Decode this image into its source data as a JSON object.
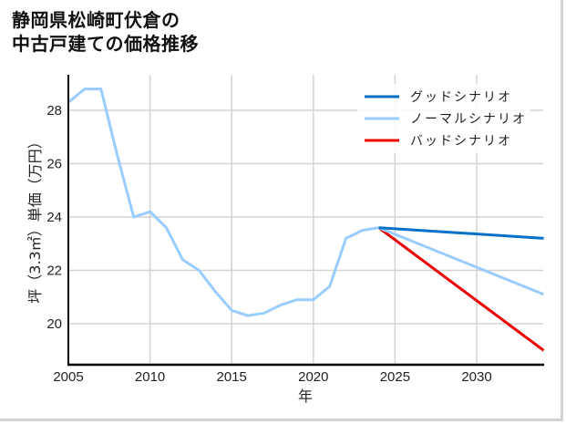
{
  "title": {
    "line1": "静岡県松崎町伏倉の",
    "line2": "中古戸建ての価格推移"
  },
  "colors": {
    "good": "#0070c8",
    "normal": "#99ccff",
    "bad": "#ee0000",
    "grid": "#d3d3d3",
    "axis": "#000000",
    "frame": "#d3d3d3"
  },
  "chart_data": {
    "type": "line",
    "title": "静岡県松崎町伏倉の中古戸建ての価格推移",
    "xlabel": "年",
    "ylabel": "坪（3.3㎡）単価（万円）",
    "xlim": [
      2005,
      2034.1
    ],
    "ylim": [
      18.5,
      29.3
    ],
    "xticks": [
      2005,
      2010,
      2015,
      2020,
      2025,
      2030
    ],
    "yticks": [
      20,
      22,
      24,
      26,
      28
    ],
    "grid": true,
    "legend_position": "upper right",
    "legend": [
      "グッドシナリオ",
      "ノーマルシナリオ",
      "バッドシナリオ"
    ],
    "series": [
      {
        "name": "ノーマルシナリオ",
        "role": "historical",
        "color": "#99ccff",
        "x": [
          2005,
          2006,
          2007,
          2008,
          2009,
          2010,
          2011,
          2012,
          2013,
          2014,
          2015,
          2016,
          2017,
          2018,
          2019,
          2020,
          2021,
          2022,
          2023,
          2024
        ],
        "y": [
          28.3,
          28.8,
          28.8,
          26.3,
          24.0,
          24.2,
          23.6,
          22.4,
          22.0,
          21.2,
          20.5,
          20.3,
          20.4,
          20.7,
          20.9,
          20.9,
          21.4,
          23.2,
          23.5,
          23.6
        ]
      },
      {
        "name": "グッドシナリオ",
        "color": "#0070c8",
        "x": [
          2024,
          2034.1
        ],
        "y": [
          23.6,
          23.2
        ]
      },
      {
        "name": "ノーマルシナリオ",
        "color": "#99ccff",
        "x": [
          2024,
          2034.1
        ],
        "y": [
          23.6,
          21.1
        ]
      },
      {
        "name": "バッドシナリオ",
        "color": "#ee0000",
        "x": [
          2024,
          2034.1
        ],
        "y": [
          23.6,
          19.0
        ]
      }
    ]
  },
  "axes": {
    "xlabel": "年",
    "ylabel": "坪（3.3㎡）単価（万円）",
    "xtick_labels": [
      "2005",
      "2010",
      "2015",
      "2020",
      "2025",
      "2030"
    ],
    "ytick_labels": [
      "20",
      "22",
      "24",
      "26",
      "28"
    ]
  },
  "legend": {
    "items": [
      {
        "label": "グッドシナリオ",
        "color": "#0070c8"
      },
      {
        "label": "ノーマルシナリオ",
        "color": "#99ccff"
      },
      {
        "label": "バッドシナリオ",
        "color": "#ee0000"
      }
    ]
  }
}
